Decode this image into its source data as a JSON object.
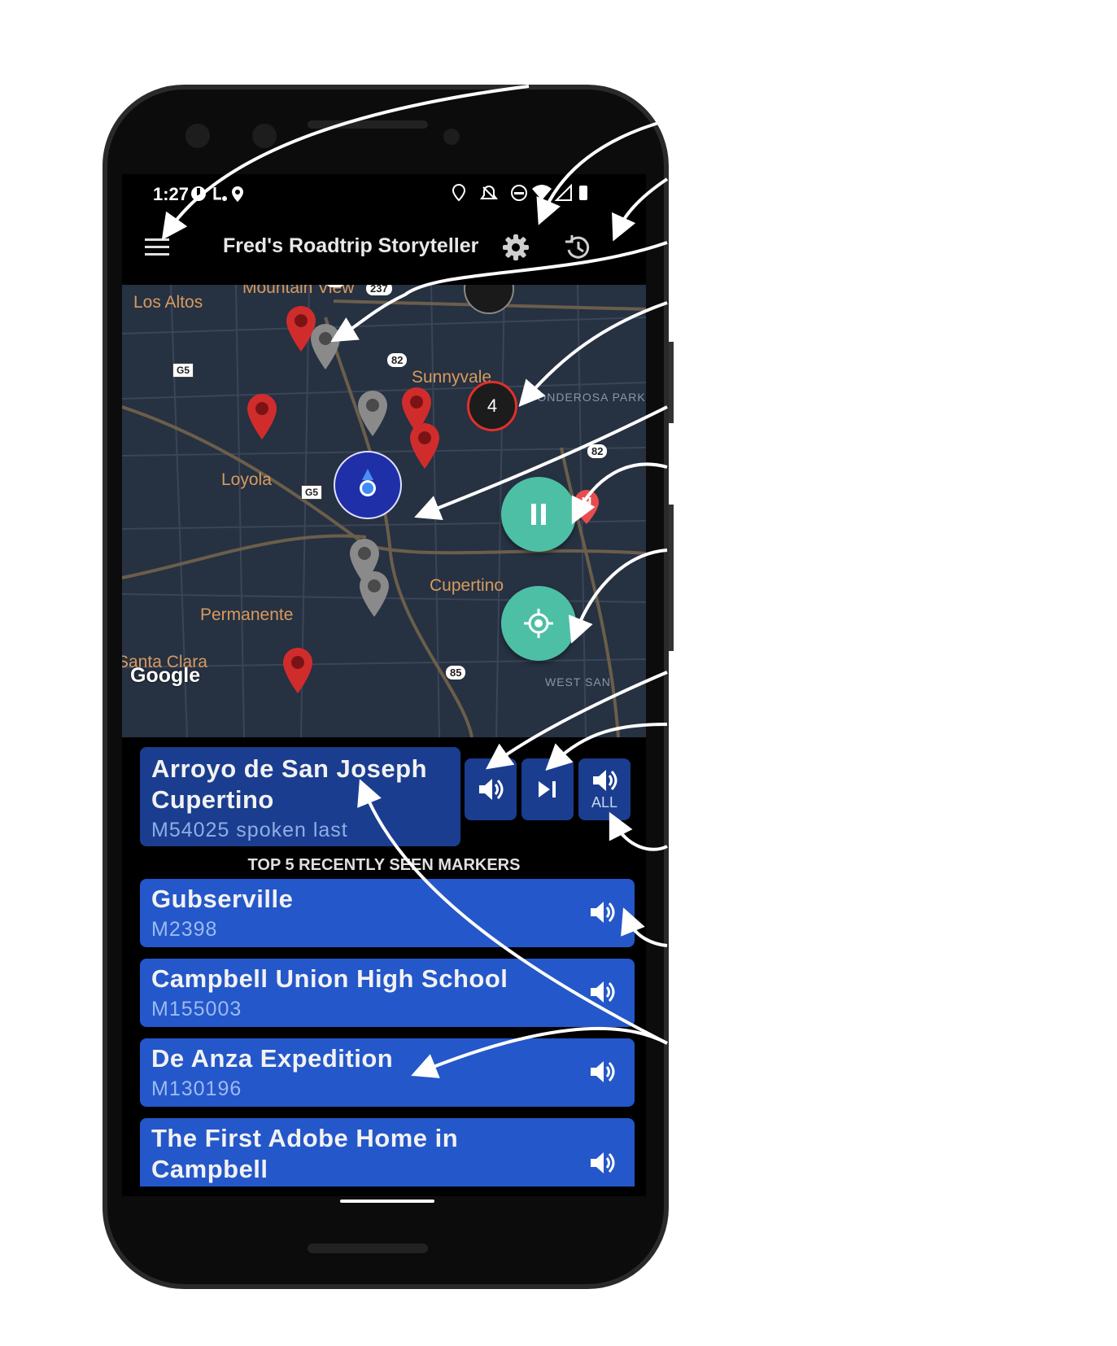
{
  "status_bar": {
    "time": "1:27"
  },
  "app_bar": {
    "title": "Fred's Roadtrip Storyteller"
  },
  "map": {
    "towns": [
      "Mountain View",
      "Los Altos",
      "Sunnyvale",
      "Loyola",
      "Cupertino",
      "Permanente",
      "Santa Clara"
    ],
    "districts": [
      "PONDEROSA PARK",
      "WEST SAN"
    ],
    "shields": [
      "85",
      "237",
      "82",
      "G5",
      "G5",
      "82",
      "85"
    ],
    "cluster_count": "4",
    "attribution": "Google"
  },
  "current_marker": {
    "title_line1": "Arroyo de San Joseph",
    "title_line2": "Cupertino",
    "subtitle": "M54025 spoken last"
  },
  "controls": {
    "speak_all_label": "ALL"
  },
  "recent": {
    "header": "TOP 5 RECENTLY SEEN MARKERS",
    "items": [
      {
        "title": "Gubserville",
        "id": "M2398"
      },
      {
        "title": "Campbell Union High School",
        "id": "M155003"
      },
      {
        "title": "De Anza Expedition",
        "id": "M130196"
      },
      {
        "title": "The First Adobe Home in",
        "title2": "Campbell"
      }
    ]
  },
  "colors": {
    "fab": "#4dbfa5",
    "card_dark": "#1a3d8f",
    "card": "#2457c9",
    "marker_red": "#d12c2c",
    "marker_gray": "#8a8a8a"
  }
}
